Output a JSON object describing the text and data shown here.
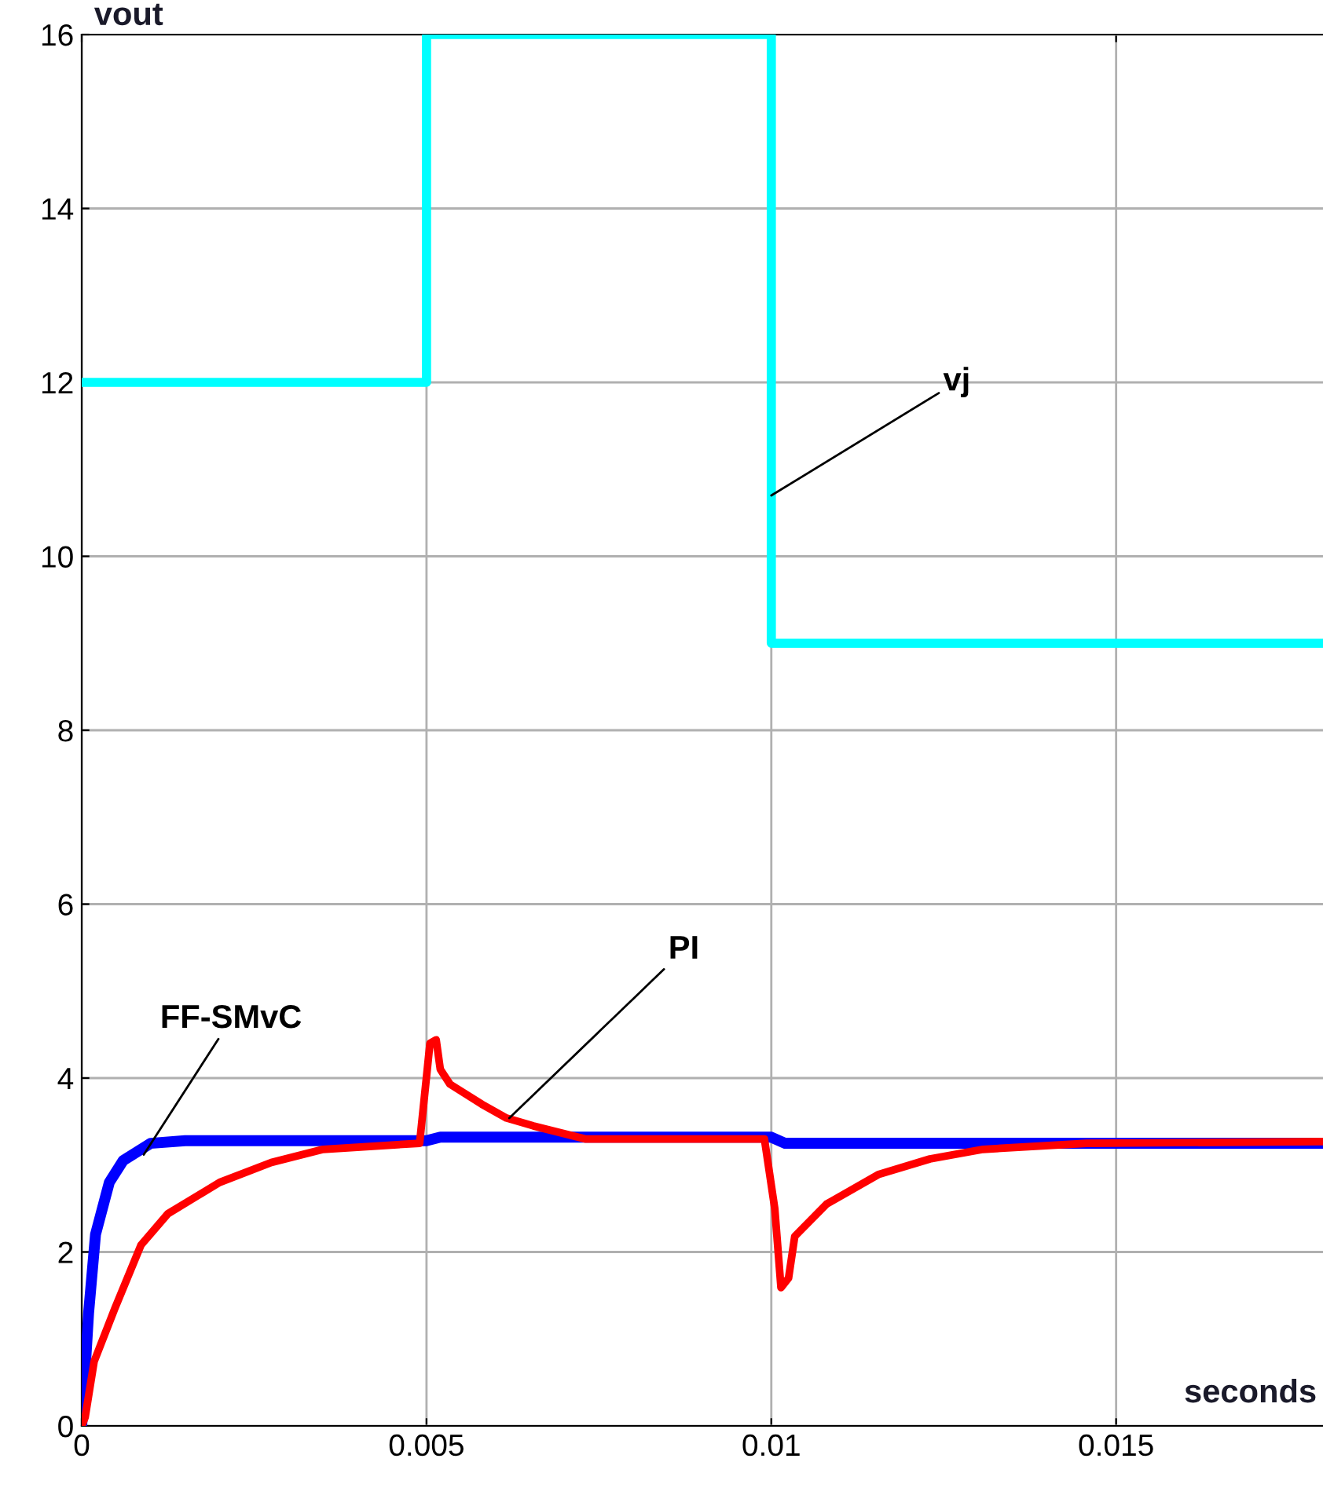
{
  "chart_data": {
    "type": "line",
    "xlabel": "seconds",
    "ylabel": "vout",
    "xlim": [
      0,
      0.018
    ],
    "ylim": [
      0,
      16
    ],
    "xticks": [
      0,
      0.005,
      0.01,
      0.015
    ],
    "yticks": [
      0,
      2,
      4,
      6,
      8,
      10,
      12,
      14,
      16
    ],
    "grid": true,
    "marker": "none",
    "line_style": "solid",
    "series": [
      {
        "color": "#00ffff",
        "type": "step",
        "x": [
          0,
          0.005,
          0.01,
          0.018
        ],
        "values": [
          12,
          16,
          9,
          9
        ]
      },
      {
        "color": "#0000ff",
        "x": [
          0,
          0.0001,
          0.0002,
          0.0004,
          0.0006,
          0.0008,
          0.001,
          0.0015,
          0.005,
          0.0052,
          0.01,
          0.0102,
          0.018
        ],
        "values": [
          0,
          1.3,
          2.2,
          2.8,
          3.05,
          3.15,
          3.25,
          3.28,
          3.28,
          3.32,
          3.32,
          3.25,
          3.25
        ]
      },
      {
        "color": "#ff0000",
        "x": [
          0,
          5e-05,
          0.00018,
          0.00048,
          0.00086,
          0.00125,
          0.002,
          0.00275,
          0.0035,
          0.0049,
          0.00505,
          0.00514,
          0.0052,
          0.00534,
          0.0058,
          0.00616,
          0.00655,
          0.0073,
          0.0099,
          0.01005,
          0.01014,
          0.01025,
          0.01034,
          0.0108,
          0.01155,
          0.0123,
          0.01307,
          0.01457,
          0.018
        ],
        "values": [
          0,
          0.1,
          0.74,
          1.35,
          2.08,
          2.44,
          2.8,
          3.03,
          3.18,
          3.25,
          4.4,
          4.44,
          4.1,
          3.93,
          3.7,
          3.54,
          3.45,
          3.3,
          3.3,
          2.5,
          1.59,
          1.7,
          2.18,
          2.55,
          2.89,
          3.07,
          3.18,
          3.25,
          3.27
        ]
      }
    ],
    "annotations": [
      {
        "text": "FF-SMvC",
        "x": 0.0009,
        "y": 3.12
      },
      {
        "text": "PI",
        "x": 0.0062,
        "y": 3.54
      },
      {
        "text": "vj",
        "x": 0.01,
        "y": 10.7
      }
    ]
  }
}
